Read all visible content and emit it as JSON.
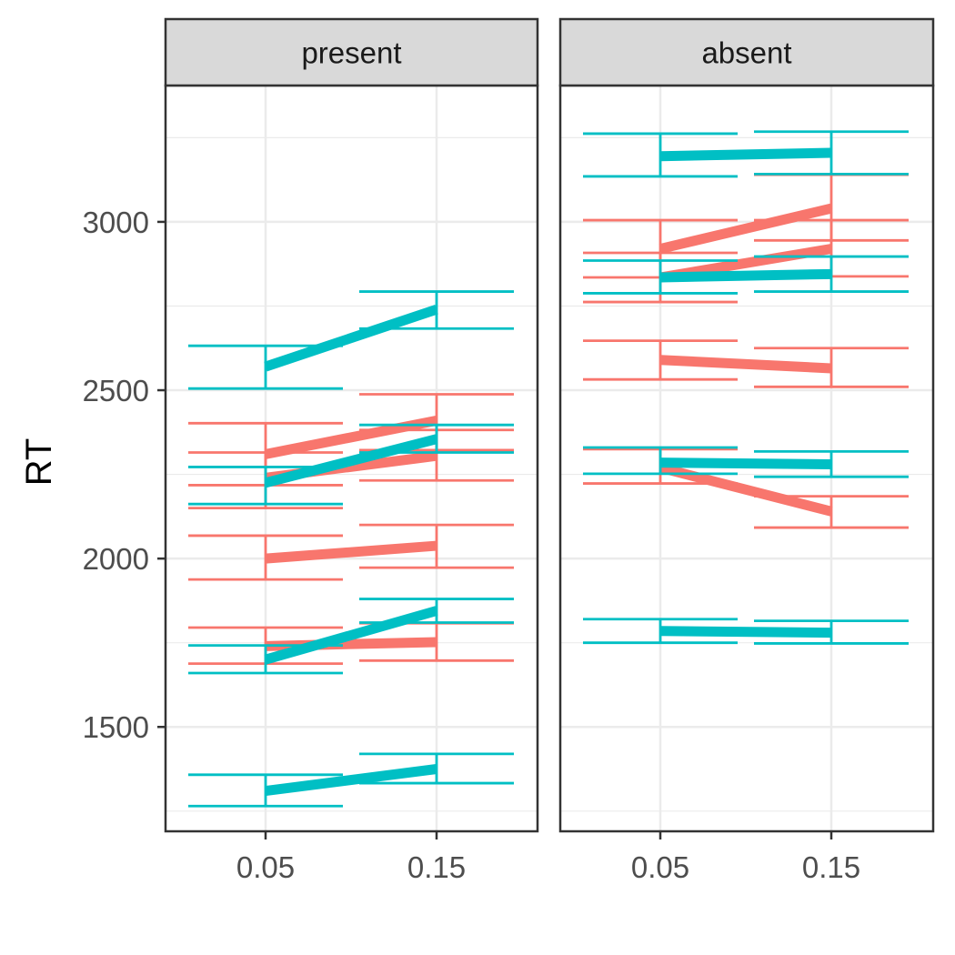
{
  "chart_data": {
    "type": "line",
    "facets": [
      {
        "label": "present",
        "series": [
          {
            "color": "#00BFC4",
            "values": [
              2570,
              2740
            ],
            "errors": [
              [
                2505,
                2632
              ],
              [
                2683,
                2793
              ]
            ]
          },
          {
            "color": "#00BFC4",
            "values": [
              2225,
              2355
            ],
            "errors": [
              [
                2162,
                2272
              ],
              [
                2315,
                2397
              ]
            ]
          },
          {
            "color": "#00BFC4",
            "values": [
              1700,
              1845
            ],
            "errors": [
              [
                1660,
                1742
              ],
              [
                1810,
                1880
              ]
            ]
          },
          {
            "color": "#00BFC4",
            "values": [
              1310,
              1375
            ],
            "errors": [
              [
                1265,
                1358
              ],
              [
                1333,
                1420
              ]
            ]
          },
          {
            "color": "#F8766D",
            "values": [
              2310,
              2410
            ],
            "errors": [
              [
                2218,
                2402
              ],
              [
                2322,
                2488
              ]
            ]
          },
          {
            "color": "#F8766D",
            "values": [
              2240,
              2305
            ],
            "errors": [
              [
                2150,
                2315
              ],
              [
                2232,
                2382
              ]
            ]
          },
          {
            "color": "#F8766D",
            "values": [
              2000,
              2038
            ],
            "errors": [
              [
                1938,
                2068
              ],
              [
                1973,
                2100
              ]
            ]
          },
          {
            "color": "#F8766D",
            "values": [
              1740,
              1752
            ],
            "errors": [
              [
                1688,
                1795
              ],
              [
                1697,
                1808
              ]
            ]
          }
        ]
      },
      {
        "label": "absent",
        "series": [
          {
            "color": "#00BFC4",
            "values": [
              3195,
              3205
            ],
            "errors": [
              [
                3135,
                3262
              ],
              [
                3142,
                3268
              ]
            ]
          },
          {
            "color": "#00BFC4",
            "values": [
              2835,
              2845
            ],
            "errors": [
              [
                2788,
                2885
              ],
              [
                2793,
                2897
              ]
            ]
          },
          {
            "color": "#00BFC4",
            "values": [
              2285,
              2280
            ],
            "errors": [
              [
                2252,
                2330
              ],
              [
                2243,
                2318
              ]
            ]
          },
          {
            "color": "#00BFC4",
            "values": [
              1785,
              1780
            ],
            "errors": [
              [
                1750,
                1820
              ],
              [
                1748,
                1815
              ]
            ]
          },
          {
            "color": "#F8766D",
            "values": [
              2920,
              3040
            ],
            "errors": [
              [
                2835,
                3005
              ],
              [
                2945,
                3140
              ]
            ]
          },
          {
            "color": "#F8766D",
            "values": [
              2835,
              2920
            ],
            "errors": [
              [
                2762,
                2908
              ],
              [
                2838,
                3005
              ]
            ]
          },
          {
            "color": "#F8766D",
            "values": [
              2590,
              2565
            ],
            "errors": [
              [
                2532,
                2647
              ],
              [
                2510,
                2625
              ]
            ]
          },
          {
            "color": "#F8766D",
            "values": [
              2270,
              2140
            ],
            "errors": [
              [
                2223,
                2325
              ],
              [
                2092,
                2185
              ]
            ]
          }
        ]
      }
    ],
    "x_categories": [
      "0.05",
      "0.15"
    ],
    "y_ticks": [
      1500,
      2000,
      2500,
      3000
    ],
    "ylabel": "RT",
    "xlabel": "",
    "ylim": [
      1190,
      3405
    ],
    "grid": true,
    "colors": {
      "cyan": "#00BFC4",
      "salmon": "#F8766D",
      "strip_bg": "#D9D9D9",
      "grid": "#EBEBEB"
    }
  }
}
